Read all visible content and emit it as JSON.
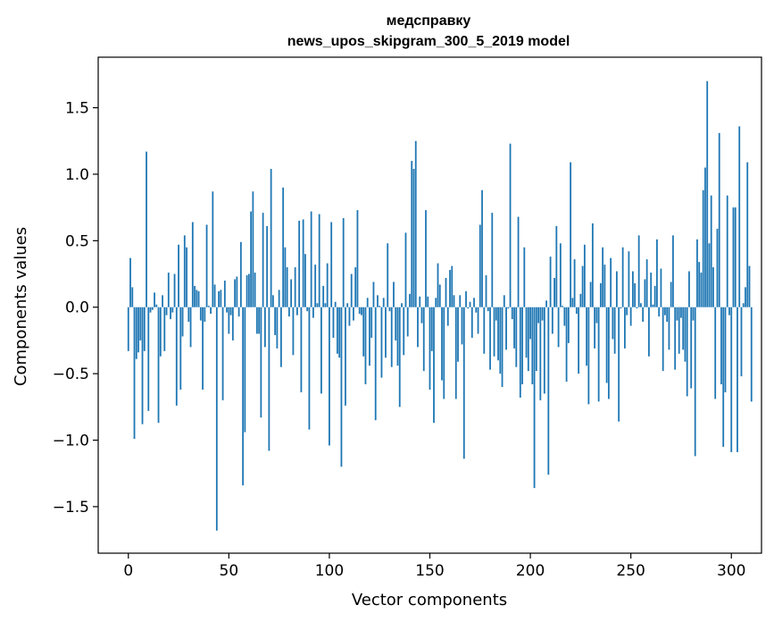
{
  "chart_data": {
    "type": "bar",
    "title": "медсправку",
    "subtitle": "news_upos_skipgram_300_5_2019 model",
    "xlabel": "Vector components",
    "ylabel": "Components values",
    "xlim": [
      -15,
      315
    ],
    "ylim": [
      -1.85,
      1.88
    ],
    "x_ticks": [
      0,
      50,
      100,
      150,
      200,
      250,
      300
    ],
    "y_ticks": [
      -1.5,
      -1.0,
      -0.5,
      0.0,
      0.5,
      1.0,
      1.5
    ],
    "x_tick_labels": [
      "0",
      "50",
      "100",
      "150",
      "200",
      "250",
      "300"
    ],
    "y_tick_labels": [
      "−1.5",
      "−1.0",
      "−0.5",
      "0.0",
      "0.5",
      "1.0",
      "1.5"
    ],
    "bar_color": "#1f77b4",
    "values": [
      -0.33,
      0.37,
      0.15,
      -0.99,
      -0.39,
      -0.34,
      -0.25,
      -0.88,
      -0.33,
      1.17,
      -0.78,
      -0.04,
      -0.02,
      0.11,
      0.02,
      -0.87,
      -0.37,
      0.09,
      -0.33,
      -0.06,
      0.26,
      -0.09,
      -0.04,
      0.25,
      -0.74,
      0.47,
      -0.62,
      -0.22,
      0.54,
      0.45,
      -0.11,
      -0.3,
      0.64,
      0.16,
      0.13,
      0.12,
      -0.1,
      -0.62,
      -0.11,
      0.62,
      0.01,
      -0.05,
      0.87,
      0.17,
      -1.68,
      0.12,
      0.13,
      -0.7,
      0.2,
      -0.04,
      -0.2,
      -0.06,
      -0.25,
      0.21,
      0.23,
      -0.07,
      0.49,
      -1.34,
      -0.94,
      0.24,
      0.25,
      0.72,
      0.87,
      0.26,
      -0.2,
      -0.2,
      -0.83,
      0.71,
      -0.3,
      0.61,
      -1.08,
      1.04,
      0.09,
      -0.21,
      -0.31,
      0.13,
      -0.45,
      0.9,
      0.45,
      0.3,
      -0.07,
      0.21,
      -0.36,
      0.3,
      -0.06,
      0.65,
      -0.64,
      0.66,
      0.4,
      -0.03,
      -0.92,
      0.72,
      -0.08,
      0.32,
      0.03,
      0.7,
      -0.65,
      0.16,
      0.03,
      0.33,
      -1.04,
      0.64,
      -0.23,
      0.04,
      -0.35,
      -0.38,
      -1.2,
      0.67,
      -0.74,
      0.03,
      -0.14,
      0.25,
      -0.1,
      0.3,
      0.73,
      -0.05,
      -0.06,
      -0.37,
      -0.58,
      0.07,
      -0.44,
      -0.23,
      0.19,
      -0.85,
      0.09,
      0.01,
      -0.53,
      0.07,
      -0.38,
      0.48,
      -0.03,
      -0.45,
      0.19,
      -0.25,
      -0.44,
      -0.75,
      0.03,
      -0.36,
      0.56,
      -0.22,
      0.1,
      1.1,
      1.04,
      1.25,
      -0.3,
      0.08,
      -0.12,
      -0.48,
      0.73,
      0.08,
      -0.62,
      -0.33,
      -0.87,
      0.07,
      0.33,
      0.17,
      -0.55,
      -0.69,
      0.22,
      -0.14,
      0.28,
      0.31,
      0.09,
      -0.69,
      -0.41,
      0.09,
      -0.28,
      -1.14,
      0.12,
      -0.01,
      0.04,
      -0.23,
      0.07,
      -0.04,
      -0.2,
      0.62,
      0.88,
      -0.35,
      0.24,
      -0.03,
      -0.47,
      0.71,
      -0.37,
      -0.1,
      -0.4,
      -0.5,
      -0.6,
      0.09,
      -0.32,
      -0.01,
      1.23,
      -0.09,
      -0.31,
      -0.45,
      0.68,
      -0.68,
      -0.58,
      0.45,
      -0.38,
      -0.48,
      -0.24,
      -0.58,
      -1.36,
      -0.48,
      -0.12,
      -0.7,
      -0.1,
      -0.65,
      0.05,
      -1.26,
      0.38,
      -0.2,
      0.22,
      0.61,
      -0.3,
      0.48,
      0.01,
      -0.14,
      -0.56,
      -0.27,
      1.09,
      0.07,
      0.36,
      -0.05,
      -0.5,
      0.1,
      0.31,
      0.47,
      -0.44,
      -0.73,
      0.19,
      0.63,
      -0.31,
      -0.12,
      -0.71,
      0.18,
      0.45,
      0.32,
      -0.57,
      -0.69,
      0.37,
      -0.24,
      -0.35,
      0.27,
      -0.86,
      -0.01,
      0.45,
      -0.31,
      -0.06,
      0.42,
      -0.14,
      0.27,
      0.18,
      -0.01,
      0.54,
      0.03,
      -0.11,
      0.21,
      0.36,
      -0.37,
      0.26,
      0.02,
      0.16,
      0.51,
      -0.07,
      0.29,
      -0.48,
      -0.06,
      -0.11,
      -0.32,
      0.19,
      0.54,
      -0.47,
      -0.1,
      -0.35,
      -0.08,
      -0.32,
      -0.41,
      -0.67,
      0.27,
      -0.61,
      -0.1,
      -1.12,
      0.51,
      0.34,
      0.26,
      0.88,
      1.05,
      1.7,
      0.48,
      0.84,
      0.3,
      -0.69,
      0.59,
      1.31,
      -0.58,
      -1.05,
      -0.64,
      0.84,
      -0.06,
      -1.09,
      0.75,
      0.75,
      -1.09,
      1.36,
      -0.52,
      0.03,
      0.15,
      1.09,
      0.31,
      -0.71
    ]
  }
}
